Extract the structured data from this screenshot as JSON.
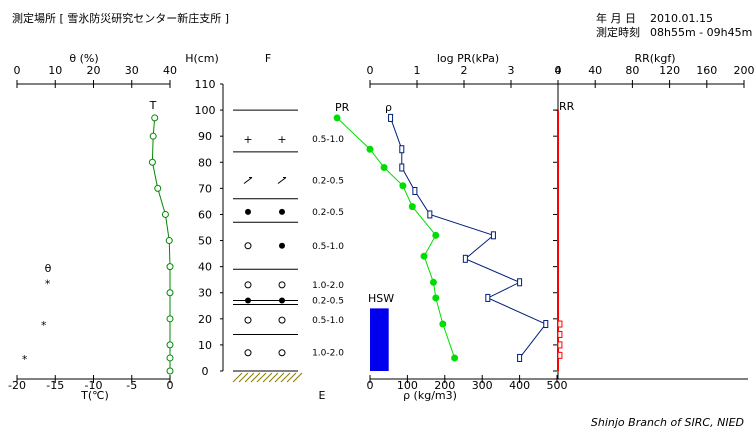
{
  "header": {
    "location_label": "測定場所 [ 雪氷防災研究センター新庄支所 ]",
    "date_label": "年 月 日",
    "date_value": "2010.01.15",
    "time_label": "測定時刻",
    "time_value": "08h55m - 09h45m"
  },
  "footer": {
    "credit": "Shinjo Branch of SIRC, NIED"
  },
  "chart_data": [
    {
      "type": "line",
      "title": "",
      "top_axis": {
        "label": "θ (%)",
        "ticks": [
          "0",
          "10",
          "20",
          "30",
          "40"
        ],
        "range": [
          0,
          40
        ]
      },
      "bottom_axis": {
        "label": "T(℃)",
        "ticks": [
          "-20",
          "-15",
          "-10",
          "-5",
          "0"
        ],
        "range": [
          -20,
          0
        ]
      },
      "series": [
        {
          "name": "T",
          "x": [
            -2.0,
            -2.2,
            -2.3,
            -1.6,
            -0.6,
            -0.1,
            0,
            0,
            0,
            0,
            0,
            0
          ],
          "y": [
            97,
            90,
            80,
            70,
            60,
            50,
            40,
            30,
            20,
            10,
            5,
            0
          ],
          "color": "#008800"
        },
        {
          "name": "θ",
          "x": [
            8,
            7,
            2
          ],
          "y": [
            34,
            18,
            5
          ]
        }
      ]
    },
    {
      "type": "table",
      "ylabel": "H(cm)",
      "yticks": [
        "0",
        "10",
        "20",
        "30",
        "40",
        "50",
        "60",
        "70",
        "80",
        "90",
        "100",
        "110"
      ],
      "ylim": [
        0,
        110
      ],
      "column_header": "F",
      "bottom_label": "E",
      "layer_boundaries": [
        100,
        84,
        66,
        57,
        39,
        27,
        25.5,
        14,
        0
      ],
      "layers": [
        {
          "height": 89,
          "symbol": "+",
          "size": "0.5-1.0"
        },
        {
          "height": 73,
          "symbol": "/",
          "size": "0.2-0.5"
        },
        {
          "height": 61,
          "symbol": "●",
          "size": "0.2-0.5"
        },
        {
          "height": 48,
          "symbol": "o ●",
          "size": "0.5-1.0"
        },
        {
          "height": 33,
          "symbol": "o",
          "size": "1.0-2.0"
        },
        {
          "height": 27,
          "symbol": "●",
          "size": "0.2-0.5"
        },
        {
          "height": 19.5,
          "symbol": "o",
          "size": "0.5-1.0"
        },
        {
          "height": 7,
          "symbol": "o",
          "size": "1.0-2.0"
        }
      ]
    },
    {
      "type": "line",
      "top_axis": {
        "label": "log PR(kPa)",
        "ticks": [
          "0",
          "1",
          "2",
          "3",
          "4"
        ],
        "range": [
          0,
          4
        ]
      },
      "bottom_axis": {
        "label": "ρ (kg/m3)",
        "ticks": [
          "0",
          "100",
          "200",
          "300",
          "400",
          "500"
        ],
        "range": [
          0,
          500
        ]
      },
      "series": [
        {
          "name": "PR",
          "x": [
            -0.7,
            0.0,
            0.3,
            0.7,
            0.9,
            1.4,
            1.15,
            1.35,
            1.4,
            1.55,
            1.8
          ],
          "y": [
            97,
            85,
            78,
            71,
            63,
            52,
            44,
            34,
            28,
            18,
            5
          ],
          "color": "#00dd00"
        },
        {
          "name": "ρ",
          "x": [
            55,
            85,
            85,
            120,
            160,
            330,
            255,
            400,
            315,
            470,
            400
          ],
          "y": [
            97,
            85,
            78,
            69,
            60,
            52,
            43,
            34,
            28,
            18,
            5
          ],
          "color": "#001f7a"
        }
      ],
      "bars": [
        {
          "name": "HSW",
          "value": 50,
          "height": 24,
          "color": "#0000ee"
        }
      ]
    },
    {
      "type": "line",
      "top_axis": {
        "label": "RR(kgf)",
        "ticks": [
          "0",
          "40",
          "80",
          "120",
          "160",
          "200"
        ],
        "range": [
          0,
          200
        ]
      },
      "series": [
        {
          "name": "RR",
          "x": [
            0,
            0,
            0,
            0,
            0,
            0,
            0,
            0,
            0,
            0,
            0
          ],
          "y": [
            100,
            90,
            80,
            70,
            60,
            50,
            40,
            30,
            20,
            10,
            0
          ],
          "color": "#ff0000"
        }
      ],
      "markers": [
        {
          "x": 1,
          "y": [
            18,
            14,
            10,
            6
          ]
        }
      ]
    }
  ]
}
